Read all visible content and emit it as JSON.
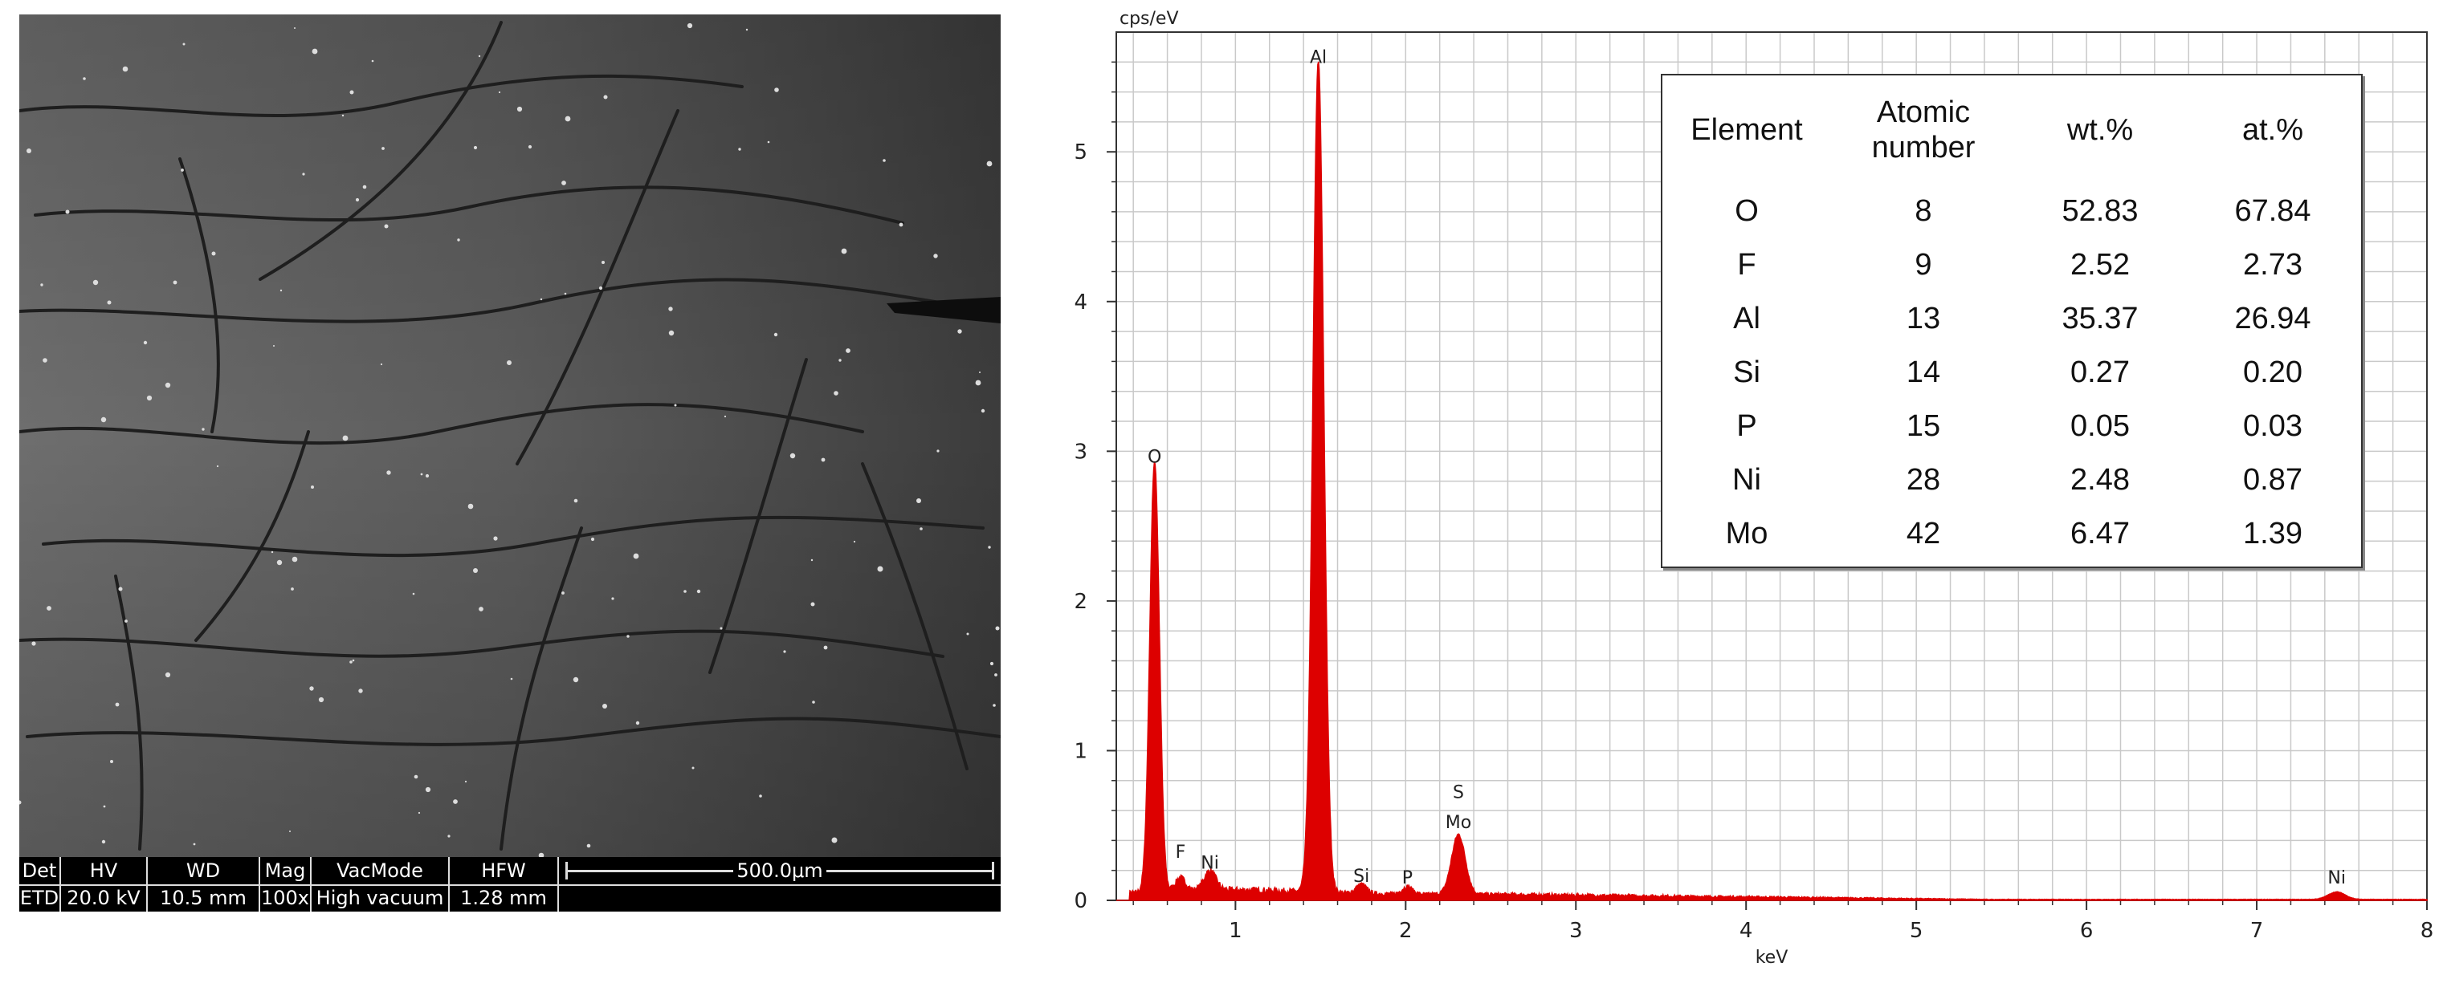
{
  "sem": {
    "databar": {
      "columns": [
        {
          "label": "Det",
          "value": "ETD"
        },
        {
          "label": "HV",
          "value": "20.0 kV"
        },
        {
          "label": "WD",
          "value": "10.5 mm"
        },
        {
          "label": "Mag",
          "value": "100x"
        },
        {
          "label": "VacMode",
          "value": "High vacuum"
        },
        {
          "label": "HFW",
          "value": "1.28 mm"
        }
      ],
      "scale_bar": "500.0μm"
    }
  },
  "chart_data": {
    "type": "line",
    "ylabel": "cps/eV",
    "xlabel": "keV",
    "xlim": [
      0.3,
      8
    ],
    "ylim": [
      0,
      5.8
    ],
    "x_ticks": [
      "1",
      "2",
      "3",
      "4",
      "5",
      "6",
      "7",
      "8"
    ],
    "y_ticks": [
      "0",
      "1",
      "2",
      "3",
      "4",
      "5"
    ],
    "grid": true,
    "series_color": "#dd0000",
    "peaks": [
      {
        "x": 0.525,
        "y": 2.88
      },
      {
        "x": 0.677,
        "y": 0.09
      },
      {
        "x": 0.85,
        "y": 0.13
      },
      {
        "x": 1.487,
        "y": 5.55
      },
      {
        "x": 1.74,
        "y": 0.06
      },
      {
        "x": 2.01,
        "y": 0.05
      },
      {
        "x": 2.31,
        "y": 0.4
      },
      {
        "x": 7.47,
        "y": 0.05
      }
    ],
    "peak_labels": [
      {
        "text": "O",
        "x": 0.525,
        "y": 2.88
      },
      {
        "text": "F",
        "x": 0.677,
        "y": 0.24
      },
      {
        "text": "Ni",
        "x": 0.85,
        "y": 0.17
      },
      {
        "text": "Al",
        "x": 1.487,
        "y": 5.55
      },
      {
        "text": "Si",
        "x": 1.74,
        "y": 0.08
      },
      {
        "text": "P",
        "x": 2.01,
        "y": 0.07
      },
      {
        "text": "Mo",
        "x": 2.31,
        "y": 0.44
      },
      {
        "text": "S",
        "x": 2.31,
        "y": 0.64
      },
      {
        "text": "Ni",
        "x": 7.47,
        "y": 0.07
      }
    ]
  },
  "composition_table": {
    "headers": [
      "Element",
      "Atomic\nnumber",
      "wt.%",
      "at.%"
    ],
    "rows": [
      [
        "O",
        "8",
        "52.83",
        "67.84"
      ],
      [
        "F",
        "9",
        "2.52",
        "2.73"
      ],
      [
        "Al",
        "13",
        "35.37",
        "26.94"
      ],
      [
        "Si",
        "14",
        "0.27",
        "0.20"
      ],
      [
        "P",
        "15",
        "0.05",
        "0.03"
      ],
      [
        "Ni",
        "28",
        "2.48",
        "0.87"
      ],
      [
        "Mo",
        "42",
        "6.47",
        "1.39"
      ]
    ]
  }
}
